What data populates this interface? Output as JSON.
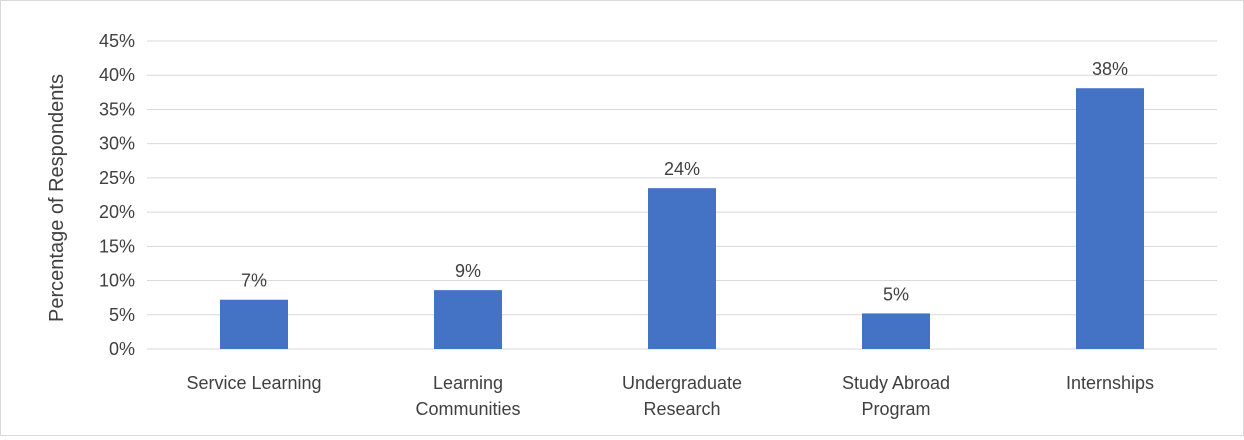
{
  "chart_data": {
    "type": "bar",
    "title": "",
    "xlabel": "",
    "ylabel": "Percentage of Respondents",
    "categories": [
      [
        "Service Learning"
      ],
      [
        "Learning",
        "Communities"
      ],
      [
        "Undergraduate",
        "Research"
      ],
      [
        "Study Abroad",
        "Program"
      ],
      [
        "Internships"
      ]
    ],
    "values": [
      7.2,
      8.6,
      23.5,
      5.2,
      38.1
    ],
    "data_labels": [
      "7%",
      "9%",
      "24%",
      "5%",
      "38%"
    ],
    "ylim": [
      0,
      45
    ],
    "yticks": [
      0,
      5,
      10,
      15,
      20,
      25,
      30,
      35,
      40,
      45
    ],
    "ytick_labels": [
      "0%",
      "5%",
      "10%",
      "15%",
      "20%",
      "25%",
      "30%",
      "35%",
      "40%",
      "45%"
    ],
    "grid": true,
    "legend": "none",
    "colors": {
      "bar": "#4472C4",
      "grid": "#d9d9d9",
      "text": "#404040"
    }
  }
}
